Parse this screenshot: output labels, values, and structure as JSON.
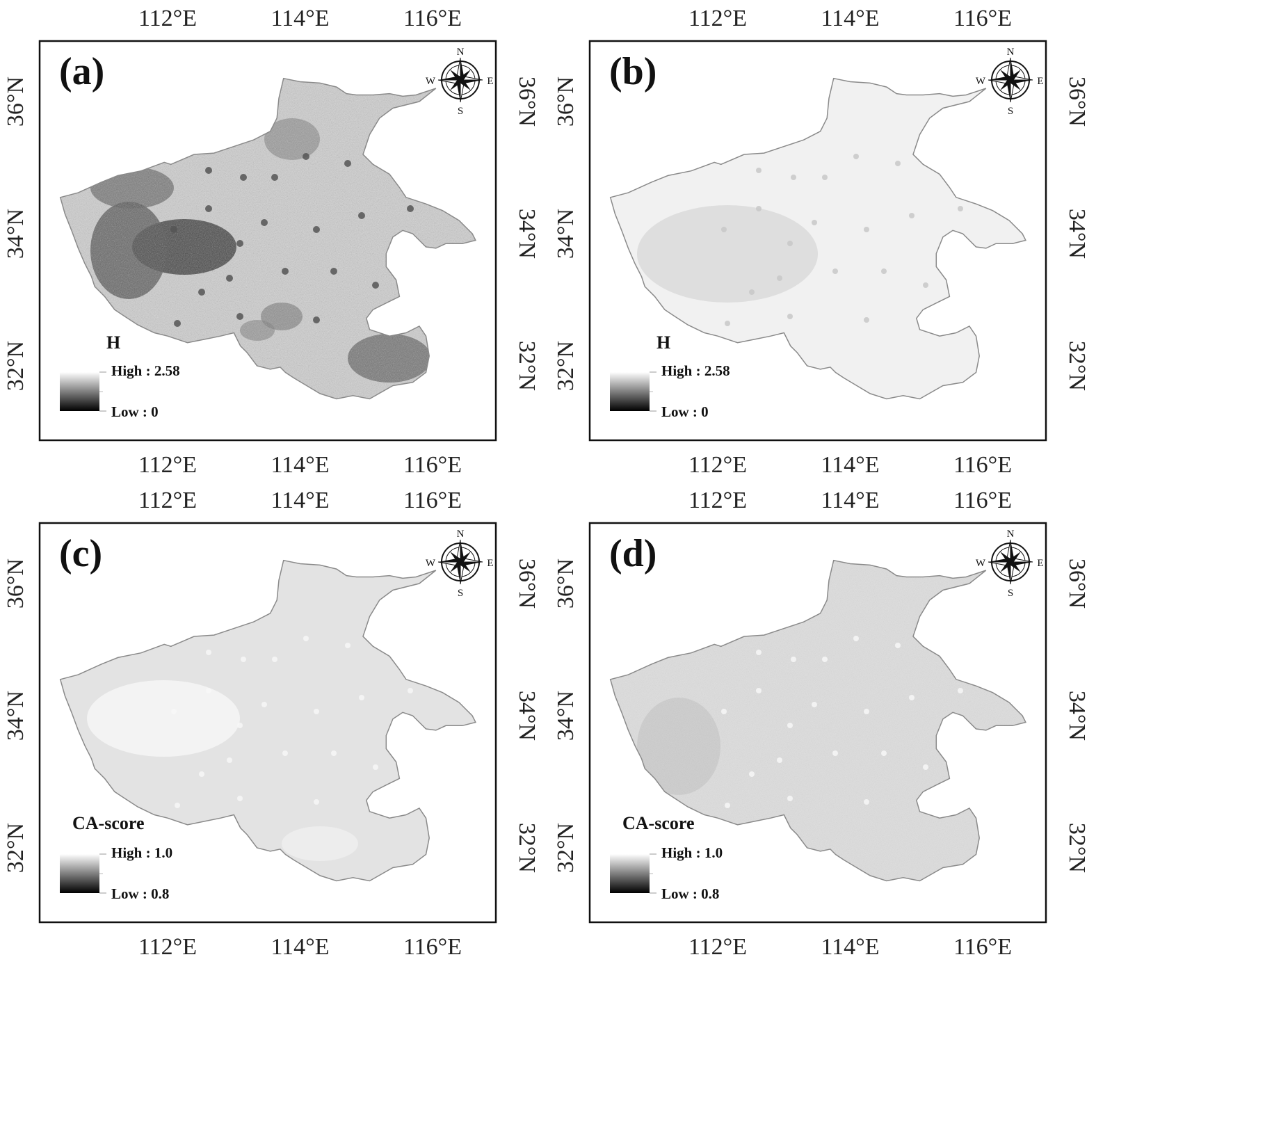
{
  "figure": {
    "panels": [
      {
        "label": "(a)",
        "legend_title": "H",
        "legend_high": "High : 2.58",
        "legend_low": "Low : 0",
        "value_range": [
          0,
          2.58
        ],
        "fill_tone": "dark-textured"
      },
      {
        "label": "(b)",
        "legend_title": "H",
        "legend_high": "High : 2.58",
        "legend_low": "Low : 0",
        "value_range": [
          0,
          2.58
        ],
        "fill_tone": "very-light"
      },
      {
        "label": "(c)",
        "legend_title": "CA-score",
        "legend_high": "High : 1.0",
        "legend_low": "Low : 0.8",
        "value_range": [
          0.8,
          1.0
        ],
        "fill_tone": "light-uniform"
      },
      {
        "label": "(d)",
        "legend_title": "CA-score",
        "legend_high": "High : 1.0",
        "legend_low": "Low : 0.8",
        "value_range": [
          0.8,
          1.0
        ],
        "fill_tone": "light-speckled"
      }
    ],
    "lon_ticks": [
      "112°E",
      "114°E",
      "116°E"
    ],
    "lat_ticks": [
      "36°N",
      "34°N",
      "32°N"
    ],
    "compass": {
      "n": "N",
      "s": "S",
      "e": "E",
      "w": "W"
    },
    "colors": {
      "frame": "#111111",
      "boundary": "#8a8a8a",
      "ramp_high": "#ffffff",
      "ramp_low": "#000000"
    }
  }
}
